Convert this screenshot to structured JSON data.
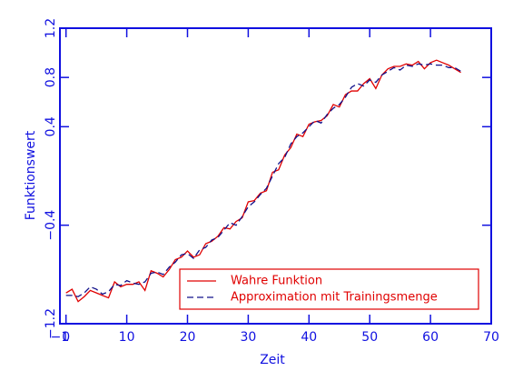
{
  "chart_data": {
    "type": "line",
    "x_label": "Zeit",
    "y_label": "Funktionswert",
    "x": [
      0,
      1,
      2,
      3,
      4,
      5,
      6,
      7,
      8,
      9,
      10,
      11,
      12,
      13,
      14,
      15,
      16,
      17,
      18,
      19,
      20,
      21,
      22,
      23,
      24,
      25,
      26,
      27,
      28,
      29,
      30,
      31,
      32,
      33,
      34,
      35,
      36,
      37,
      38,
      39,
      40,
      41,
      42,
      43,
      44,
      45,
      46,
      47,
      48,
      49,
      50,
      51,
      52,
      53,
      54,
      55,
      56,
      57,
      58,
      59,
      60,
      61,
      62,
      63,
      64,
      65
    ],
    "series": [
      {
        "name": "Wahre Funktion",
        "color": "#e00000",
        "dash": false,
        "values": [
          -0.95,
          -0.92,
          -1.02,
          -0.98,
          -0.93,
          -0.95,
          -0.97,
          -0.99,
          -0.86,
          -0.9,
          -0.88,
          -0.88,
          -0.86,
          -0.93,
          -0.77,
          -0.79,
          -0.82,
          -0.76,
          -0.68,
          -0.66,
          -0.61,
          -0.66,
          -0.64,
          -0.55,
          -0.53,
          -0.49,
          -0.42,
          -0.43,
          -0.37,
          -0.34,
          -0.21,
          -0.2,
          -0.14,
          -0.12,
          0.03,
          0.05,
          0.17,
          0.23,
          0.34,
          0.32,
          0.42,
          0.44,
          0.45,
          0.49,
          0.58,
          0.56,
          0.66,
          0.69,
          0.69,
          0.75,
          0.79,
          0.71,
          0.82,
          0.87,
          0.89,
          0.89,
          0.91,
          0.9,
          0.93,
          0.87,
          0.92,
          0.94,
          0.92,
          0.9,
          0.87,
          0.84
        ]
      },
      {
        "name": "Approximation mit Trainingsmenge",
        "color": "#10108a",
        "dash": true,
        "values": [
          -0.97,
          -0.97,
          -0.98,
          -0.95,
          -0.9,
          -0.92,
          -0.96,
          -0.94,
          -0.88,
          -0.89,
          -0.85,
          -0.87,
          -0.88,
          -0.86,
          -0.79,
          -0.78,
          -0.8,
          -0.74,
          -0.7,
          -0.64,
          -0.63,
          -0.67,
          -0.6,
          -0.58,
          -0.52,
          -0.5,
          -0.44,
          -0.38,
          -0.4,
          -0.33,
          -0.25,
          -0.21,
          -0.15,
          -0.1,
          0.0,
          0.1,
          0.15,
          0.26,
          0.32,
          0.35,
          0.4,
          0.45,
          0.43,
          0.5,
          0.55,
          0.58,
          0.64,
          0.72,
          0.75,
          0.73,
          0.78,
          0.76,
          0.82,
          0.85,
          0.88,
          0.86,
          0.9,
          0.89,
          0.91,
          0.9,
          0.91,
          0.9,
          0.9,
          0.88,
          0.88,
          0.85
        ]
      }
    ],
    "xlim": [
      -1,
      70
    ],
    "ylim": [
      -1.2,
      1.2
    ],
    "xticks": [
      {
        "value": -1,
        "label": "−1"
      },
      0,
      10,
      20,
      30,
      40,
      50,
      60,
      70
    ],
    "yticks": [
      {
        "value": -1.2,
        "label": "−1.2"
      },
      {
        "value": -0.4,
        "label": "−0.4"
      },
      0.4,
      0.8,
      1.2
    ],
    "axis_color": "#1010e0",
    "legend": "lower right"
  }
}
